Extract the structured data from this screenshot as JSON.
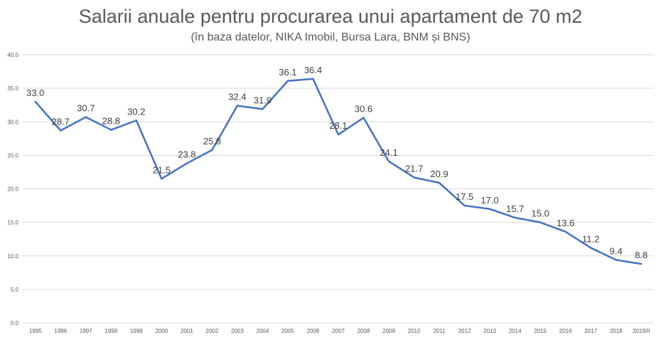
{
  "chart_data": {
    "type": "line",
    "title": "Salarii anuale pentru procurarea unui apartament de 70 m2",
    "subtitle": "(în baza datelor, NIKA Imobil, Bursa Lara, BNM și BNS)",
    "categories": [
      "1995",
      "1996",
      "1997",
      "1998",
      "1999",
      "2000",
      "2001",
      "2002",
      "2003",
      "2004",
      "2005",
      "2006",
      "2007",
      "2008",
      "2009",
      "2010",
      "2011",
      "2012",
      "2013",
      "2014",
      "2015",
      "2016",
      "2017",
      "2018",
      "2019/II"
    ],
    "values": [
      33.0,
      28.7,
      30.7,
      28.8,
      30.2,
      21.5,
      23.8,
      25.8,
      32.4,
      31.9,
      36.1,
      36.4,
      28.1,
      30.6,
      24.1,
      21.7,
      20.9,
      17.5,
      17.0,
      15.7,
      15.0,
      13.6,
      11.2,
      9.4,
      8.8
    ],
    "data_labels": [
      "33.0",
      "28.7",
      "30.7",
      "28.8",
      "30.2",
      "21.5",
      "23.8",
      "25.8",
      "32.4",
      "31.9",
      "36.1",
      "36.4",
      "28.1",
      "30.6",
      "24.1",
      "21.7",
      "20.9",
      "17.5",
      "17.0",
      "15.7",
      "15.0",
      "13.6",
      "11.2",
      "9.4",
      "8.8"
    ],
    "ylim": [
      0,
      40
    ],
    "yticks": [
      "0.0",
      "5.0",
      "10.0",
      "15.0",
      "20.0",
      "25.0",
      "30.0",
      "35.0",
      "40.0"
    ],
    "grid": true,
    "line_color": "#4472c4",
    "xlabel": "",
    "ylabel": ""
  }
}
